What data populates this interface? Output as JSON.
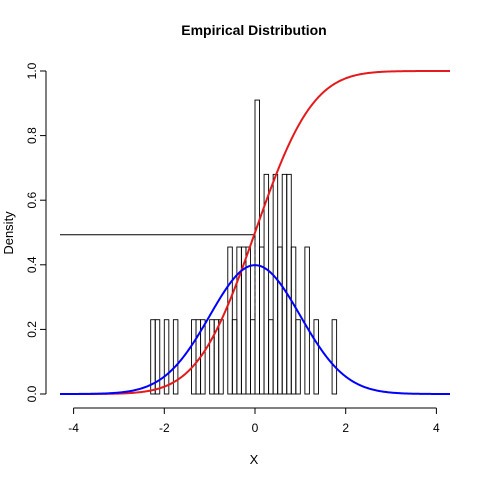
{
  "chart_data": {
    "type": "bar",
    "title": "Empirical Distribution",
    "xlabel": "X",
    "ylabel": "Density",
    "xlim": [
      -4.3,
      4.3
    ],
    "ylim": [
      0,
      1.0
    ],
    "x_ticks": [
      {
        "value": -4,
        "label": "-4"
      },
      {
        "value": -2,
        "label": "-2"
      },
      {
        "value": 0,
        "label": "0"
      },
      {
        "value": 2,
        "label": "2"
      },
      {
        "value": 4,
        "label": "4"
      }
    ],
    "y_ticks": [
      {
        "value": 0.0,
        "label": "0.0"
      },
      {
        "value": 0.2,
        "label": "0.2"
      },
      {
        "value": 0.4,
        "label": "0.4"
      },
      {
        "value": 0.6,
        "label": "0.6"
      },
      {
        "value": 0.8,
        "label": "0.8"
      },
      {
        "value": 1.0,
        "label": "1.0"
      }
    ],
    "histogram": {
      "bin_width": 0.1,
      "bins": [
        {
          "x0": -2.3,
          "density": 0.23
        },
        {
          "x0": -2.2,
          "density": 0.23
        },
        {
          "x0": -2.0,
          "density": 0.23
        },
        {
          "x0": -1.8,
          "density": 0.23
        },
        {
          "x0": -1.4,
          "density": 0.23
        },
        {
          "x0": -1.3,
          "density": 0.23
        },
        {
          "x0": -1.2,
          "density": 0.23
        },
        {
          "x0": -1.0,
          "density": 0.23
        },
        {
          "x0": -0.9,
          "density": 0.23
        },
        {
          "x0": -0.8,
          "density": 0.23
        },
        {
          "x0": -0.6,
          "density": 0.455
        },
        {
          "x0": -0.5,
          "density": 0.23
        },
        {
          "x0": -0.4,
          "density": 0.455
        },
        {
          "x0": -0.3,
          "density": 0.455
        },
        {
          "x0": -0.2,
          "density": 0.455
        },
        {
          "x0": -0.1,
          "density": 0.23
        },
        {
          "x0": 0.0,
          "density": 0.91
        },
        {
          "x0": 0.1,
          "density": 0.455
        },
        {
          "x0": 0.2,
          "density": 0.68
        },
        {
          "x0": 0.3,
          "density": 0.23
        },
        {
          "x0": 0.4,
          "density": 0.68
        },
        {
          "x0": 0.5,
          "density": 0.455
        },
        {
          "x0": 0.6,
          "density": 0.68
        },
        {
          "x0": 0.7,
          "density": 0.68
        },
        {
          "x0": 0.8,
          "density": 0.455
        },
        {
          "x0": 0.9,
          "density": 0.23
        },
        {
          "x0": 1.1,
          "density": 0.455
        },
        {
          "x0": 1.3,
          "density": 0.23
        },
        {
          "x0": 1.7,
          "density": 0.23
        }
      ]
    },
    "curves": [
      {
        "kind": "normal_cdf",
        "mean": 0,
        "sd": 1,
        "color": "#e41a1c"
      },
      {
        "kind": "normal_pdf",
        "mean": 0,
        "sd": 1,
        "color": "#0000ff"
      }
    ],
    "reference_lines": {
      "vertical_dashed_x": 0,
      "horizontal_y": 0.493,
      "horizontal_x_end": 0
    },
    "grid": false,
    "legend": "none"
  }
}
